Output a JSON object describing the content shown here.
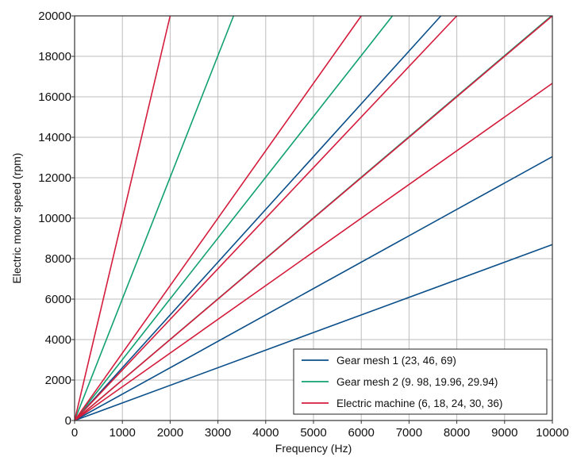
{
  "chart_data": {
    "type": "line",
    "xlabel": "Frequency (Hz)",
    "ylabel": "Electric motor speed (rpm)",
    "xlim": [
      0,
      10000
    ],
    "ylim": [
      0,
      20000
    ],
    "x_ticks": [
      0,
      1000,
      2000,
      3000,
      4000,
      5000,
      6000,
      7000,
      8000,
      9000,
      10000
    ],
    "y_ticks": [
      0,
      2000,
      4000,
      6000,
      8000,
      10000,
      12000,
      14000,
      16000,
      18000,
      20000
    ],
    "x_tick_labels": [
      "0",
      "1000",
      "2000",
      "3000",
      "4000",
      "5000",
      "6000",
      "7000",
      "8000",
      "9000",
      "10000"
    ],
    "y_tick_labels": [
      "0",
      "2000",
      "4000",
      "6000",
      "8000",
      "10000",
      "12000",
      "14000",
      "16000",
      "18000",
      "20000"
    ],
    "grid": true,
    "legend_position": "bottom-right",
    "series": [
      {
        "name": "Gear mesh 1 (23, 46, 69)",
        "color": "#0b4f8a",
        "lines": [
          {
            "order": 23,
            "x": [
              0,
              7667
            ],
            "y": [
              0,
              20000
            ]
          },
          {
            "order": 46,
            "x": [
              0,
              10000
            ],
            "y": [
              0,
              13043
            ]
          },
          {
            "order": 69,
            "x": [
              0,
              10000
            ],
            "y": [
              0,
              8696
            ]
          }
        ]
      },
      {
        "name": "Gear mesh 2 (9. 98, 19.96, 29.94)",
        "color": "#10a072",
        "lines": [
          {
            "order": 9.98,
            "x": [
              0,
              3327
            ],
            "y": [
              0,
              20000
            ]
          },
          {
            "order": 19.96,
            "x": [
              0,
              6653
            ],
            "y": [
              0,
              20000
            ]
          },
          {
            "order": 29.94,
            "x": [
              0,
              9980
            ],
            "y": [
              0,
              20000
            ]
          }
        ]
      },
      {
        "name": "Electric machine (6, 18, 24, 30, 36)",
        "color": "#d41c3c",
        "lines": [
          {
            "order": 6,
            "x": [
              0,
              2000
            ],
            "y": [
              0,
              20000
            ]
          },
          {
            "order": 18,
            "x": [
              0,
              6000
            ],
            "y": [
              0,
              20000
            ]
          },
          {
            "order": 24,
            "x": [
              0,
              8000
            ],
            "y": [
              0,
              20000
            ]
          },
          {
            "order": 30,
            "x": [
              0,
              10000
            ],
            "y": [
              0,
              20000
            ]
          },
          {
            "order": 36,
            "x": [
              0,
              10000
            ],
            "y": [
              0,
              16667
            ]
          }
        ]
      }
    ]
  }
}
